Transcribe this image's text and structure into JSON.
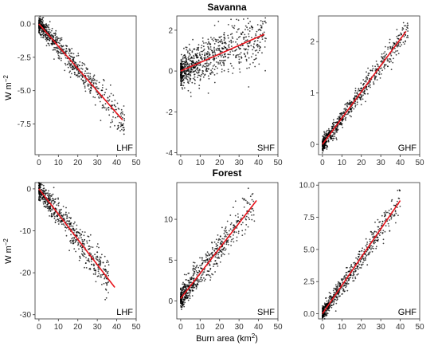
{
  "figure": {
    "y_label_main": "W m",
    "y_label_sup": "−2",
    "x_label_main": "Burn area (km",
    "x_label_sup": "2",
    "x_label_end": ")"
  },
  "colors": {
    "points": "#000000",
    "fit_line": "#e8141c",
    "frame": "#333333"
  },
  "chart_data": [
    {
      "type": "scatter",
      "group": "Savanna",
      "row_title": "Savanna",
      "label": "LHF",
      "xlim": [
        -2,
        50
      ],
      "ylim": [
        -9.8,
        0.6
      ],
      "xticks": [
        0,
        10,
        20,
        30,
        40,
        50
      ],
      "yticks": [
        0.0,
        -2.5,
        -5.0,
        -7.5
      ],
      "ytick_labels": [
        "0.0",
        "-2.5",
        "-5.0",
        "-7.5"
      ],
      "fit": {
        "x": [
          0,
          43
        ],
        "y": [
          0.0,
          -7.2
        ]
      },
      "cloud": {
        "x_max": 44,
        "slope": -0.167,
        "intercept": 0.0,
        "spread": 0.6,
        "n": 700
      }
    },
    {
      "type": "scatter",
      "group": "Savanna",
      "label": "SHF",
      "xlim": [
        -2,
        50
      ],
      "ylim": [
        -4.1,
        2.7
      ],
      "xticks": [
        0,
        10,
        20,
        30,
        40,
        50
      ],
      "yticks": [
        2,
        0,
        -2,
        -4
      ],
      "ytick_labels": [
        "2",
        "0",
        "-2",
        "-4"
      ],
      "fit": {
        "x": [
          0,
          43
        ],
        "y": [
          0.0,
          1.8
        ]
      },
      "cloud": {
        "x_max": 44,
        "slope": 0.042,
        "intercept": 0.0,
        "spread": 0.75,
        "n": 800
      }
    },
    {
      "type": "scatter",
      "group": "Savanna",
      "label": "GHF",
      "xlim": [
        -2,
        50
      ],
      "ylim": [
        -0.2,
        2.5
      ],
      "xticks": [
        0,
        10,
        20,
        30,
        40,
        50
      ],
      "yticks": [
        0,
        1,
        2
      ],
      "ytick_labels": [
        "0",
        "1",
        "2"
      ],
      "fit": {
        "x": [
          0,
          43
        ],
        "y": [
          0.0,
          2.2
        ]
      },
      "cloud": {
        "x_max": 44,
        "slope": 0.051,
        "intercept": 0.0,
        "spread": 0.13,
        "n": 700
      }
    },
    {
      "type": "scatter",
      "group": "Forest",
      "row_title": "Forest",
      "label": "LHF",
      "xlim": [
        -2,
        50
      ],
      "ylim": [
        -31,
        1.5
      ],
      "xticks": [
        0,
        10,
        20,
        30,
        40,
        50
      ],
      "yticks": [
        0,
        -10,
        -20,
        -30
      ],
      "ytick_labels": [
        "0",
        "-10",
        "-20",
        "-30"
      ],
      "fit": {
        "x": [
          0,
          39
        ],
        "y": [
          0.0,
          -23.5
        ]
      },
      "cloud": {
        "x_max": 36,
        "slope": -0.6,
        "intercept": 0.0,
        "spread": 2.2,
        "n": 600
      }
    },
    {
      "type": "scatter",
      "group": "Forest",
      "label": "SHF",
      "xlim": [
        -2,
        50
      ],
      "ylim": [
        -2.2,
        14.5
      ],
      "xticks": [
        0,
        10,
        20,
        30,
        40,
        50
      ],
      "yticks": [
        0,
        5,
        10
      ],
      "ytick_labels": [
        "0",
        "5",
        "10"
      ],
      "fit": {
        "x": [
          0,
          39
        ],
        "y": [
          0.3,
          12.3
        ]
      },
      "cloud": {
        "x_max": 38,
        "slope": 0.31,
        "intercept": 0.3,
        "spread": 1.3,
        "n": 600
      }
    },
    {
      "type": "scatter",
      "group": "Forest",
      "label": "GHF",
      "xlim": [
        -2,
        50
      ],
      "ylim": [
        -0.4,
        10.2
      ],
      "xticks": [
        0,
        10,
        20,
        30,
        40,
        50
      ],
      "yticks": [
        0.0,
        2.5,
        5.0,
        7.5,
        10.0
      ],
      "ytick_labels": [
        "0.0",
        "2.5",
        "5.0",
        "7.5",
        "10.0"
      ],
      "fit": {
        "x": [
          0,
          40
        ],
        "y": [
          0.0,
          8.8
        ]
      },
      "cloud": {
        "x_max": 40,
        "slope": 0.22,
        "intercept": 0.0,
        "spread": 0.55,
        "n": 600
      }
    }
  ]
}
